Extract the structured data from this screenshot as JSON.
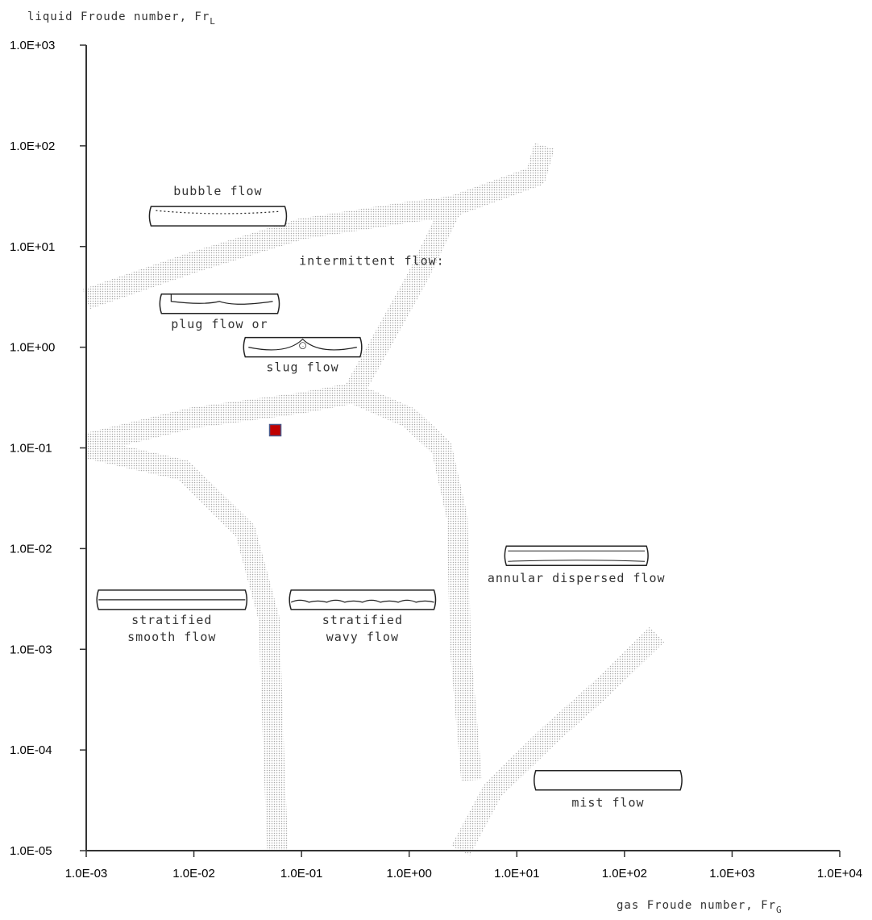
{
  "chart_data": {
    "type": "scatter",
    "title": "",
    "xlabel": "gas Froude number, Fr",
    "xlabel_subscript": "G",
    "ylabel": "liquid Froude number, Fr",
    "ylabel_subscript": "L",
    "x_scale": "log",
    "y_scale": "log",
    "xlim": [
      0.001,
      10000
    ],
    "ylim": [
      1e-05,
      1000
    ],
    "x_ticks": [
      {
        "value": 0.001,
        "label": "1.0E-03"
      },
      {
        "value": 0.01,
        "label": "1.0E-02"
      },
      {
        "value": 0.1,
        "label": "1.0E-01"
      },
      {
        "value": 1,
        "label": "1.0E+00"
      },
      {
        "value": 10,
        "label": "1.0E+01"
      },
      {
        "value": 100,
        "label": "1.0E+02"
      },
      {
        "value": 1000,
        "label": "1.0E+03"
      },
      {
        "value": 10000,
        "label": "1.0E+04"
      }
    ],
    "y_ticks": [
      {
        "value": 1e-05,
        "label": "1.0E-05"
      },
      {
        "value": 0.0001,
        "label": "1.0E-04"
      },
      {
        "value": 0.001,
        "label": "1.0E-03"
      },
      {
        "value": 0.01,
        "label": "1.0E-02"
      },
      {
        "value": 0.1,
        "label": "1.0E-01"
      },
      {
        "value": 1,
        "label": "1.0E+00"
      },
      {
        "value": 10,
        "label": "1.0E+01"
      },
      {
        "value": 100,
        "label": "1.0E+02"
      },
      {
        "value": 1000,
        "label": "1.0E+03"
      }
    ],
    "points": [
      {
        "x": 0.057,
        "y": 0.15,
        "color": "#c00000",
        "edge": "#4a5a8c"
      }
    ],
    "boundaries": [
      {
        "name": "bubble-intermittent",
        "points": [
          [
            0.001,
            3
          ],
          [
            0.01,
            7
          ],
          [
            0.1,
            15
          ],
          [
            1,
            22
          ],
          [
            2.5,
            25
          ]
        ]
      },
      {
        "name": "upper-dispersed",
        "points": [
          [
            0.3,
            0.35
          ],
          [
            1.2,
            5
          ],
          [
            2.5,
            25
          ],
          [
            15,
            50
          ],
          [
            18,
            100
          ]
        ]
      },
      {
        "name": "intermittent-stratified",
        "points": [
          [
            0.001,
            0.11
          ],
          [
            0.01,
            0.2
          ],
          [
            0.1,
            0.28
          ],
          [
            0.3,
            0.35
          ]
        ]
      },
      {
        "name": "intermittent-annular",
        "points": [
          [
            0.3,
            0.35
          ],
          [
            1,
            0.2
          ],
          [
            2,
            0.1
          ],
          [
            2.8,
            0.02
          ],
          [
            3,
            0.001
          ],
          [
            3.8,
            5e-05
          ]
        ]
      },
      {
        "name": "smooth-wavy",
        "points": [
          [
            0.001,
            0.1
          ],
          [
            0.008,
            0.06
          ],
          [
            0.03,
            0.015
          ],
          [
            0.05,
            0.002
          ],
          [
            0.055,
            0.0001
          ],
          [
            0.06,
            1e-05
          ]
        ]
      },
      {
        "name": "annular-mist",
        "points": [
          [
            3,
            1e-05
          ],
          [
            6,
            4e-05
          ],
          [
            20,
            0.00014
          ],
          [
            60,
            0.0004
          ],
          [
            200,
            0.0014
          ]
        ]
      }
    ],
    "regions": [
      {
        "label_lines": [
          "bubble flow"
        ],
        "pipe": "bubble",
        "pipe_x": [
          0.004,
          0.07
        ],
        "pipe_y": 20
      },
      {
        "label_lines": [
          "intermittent flow:"
        ],
        "pipe": "none",
        "label_x": 0.45,
        "label_y": 6.6
      },
      {
        "label_lines": [
          "plug flow  or"
        ],
        "pipe": "plug",
        "pipe_x": [
          0.005,
          0.06
        ],
        "pipe_y": 2.7
      },
      {
        "label_lines": [
          "slug flow"
        ],
        "pipe": "slug",
        "pipe_x": [
          0.03,
          0.35
        ],
        "pipe_y": 1.0
      },
      {
        "label_lines": [
          "annular dispersed flow"
        ],
        "pipe": "annular",
        "pipe_x": [
          8,
          160
        ],
        "pipe_y": 0.0085
      },
      {
        "label_lines": [
          "stratified",
          "smooth flow"
        ],
        "pipe": "smooth",
        "pipe_x": [
          0.0013,
          0.03
        ],
        "pipe_y": 0.0031
      },
      {
        "label_lines": [
          "stratified",
          "wavy flow"
        ],
        "pipe": "wavy",
        "pipe_x": [
          0.08,
          1.7
        ],
        "pipe_y": 0.0031
      },
      {
        "label_lines": [
          "mist flow"
        ],
        "pipe": "mist",
        "pipe_x": [
          15,
          330
        ],
        "pipe_y": 5e-05
      }
    ],
    "grid": false,
    "legend": "none"
  }
}
